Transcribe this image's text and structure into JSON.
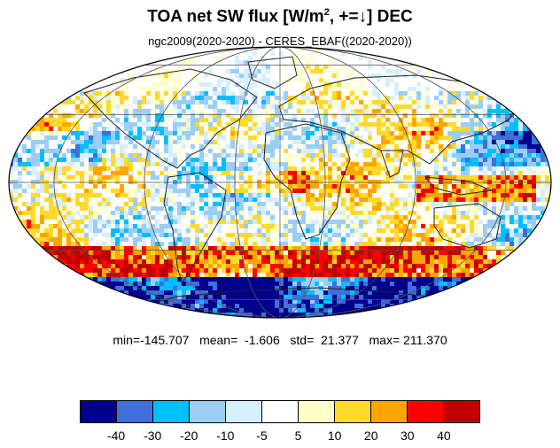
{
  "figure": {
    "title_main": "TOA net SW flux [W/m",
    "title_sup": "2",
    "title_tail": ", +=↓]  DEC",
    "subtitle": "ngc2009(2020-2020) - CERES_EBAF((2020-2020))",
    "stats": "min=-145.707   mean=  -1.606   std=  21.377   max= 211.370"
  },
  "map": {
    "projection": "Mollweide",
    "graticule": true,
    "coastlines": true,
    "field": "TOA net SW flux difference",
    "hotspots": [
      {
        "region": "Southern Ocean band (around Antarctica)",
        "sign": "positive",
        "level": 30
      },
      {
        "region": "Antarctic coast",
        "sign": "negative",
        "level": -40
      },
      {
        "region": "Tropical Atlantic / Gulf of Guinea",
        "sign": "positive",
        "level": 30
      },
      {
        "region": "Maritime Continent / Indonesia",
        "sign": "positive",
        "level": 30
      },
      {
        "region": "Northern South America",
        "sign": "positive",
        "level": 20
      },
      {
        "region": "North Pacific subtropics",
        "sign": "negative",
        "level": -30
      },
      {
        "region": "Subtropical oceans stratocumulus",
        "sign": "negative",
        "level": -20
      }
    ]
  },
  "colorbar": {
    "labels": [
      "-40",
      "-30",
      "-20",
      "-10",
      "-5",
      "5",
      "10",
      "20",
      "30",
      "40"
    ],
    "colors": [
      "#00008b",
      "#3f6fd8",
      "#00bfff",
      "#9ccdf5",
      "#d6efff",
      "#ffffff",
      "#ffffc8",
      "#ffd92f",
      "#ffa500",
      "#ff0000",
      "#c00000"
    ]
  }
}
